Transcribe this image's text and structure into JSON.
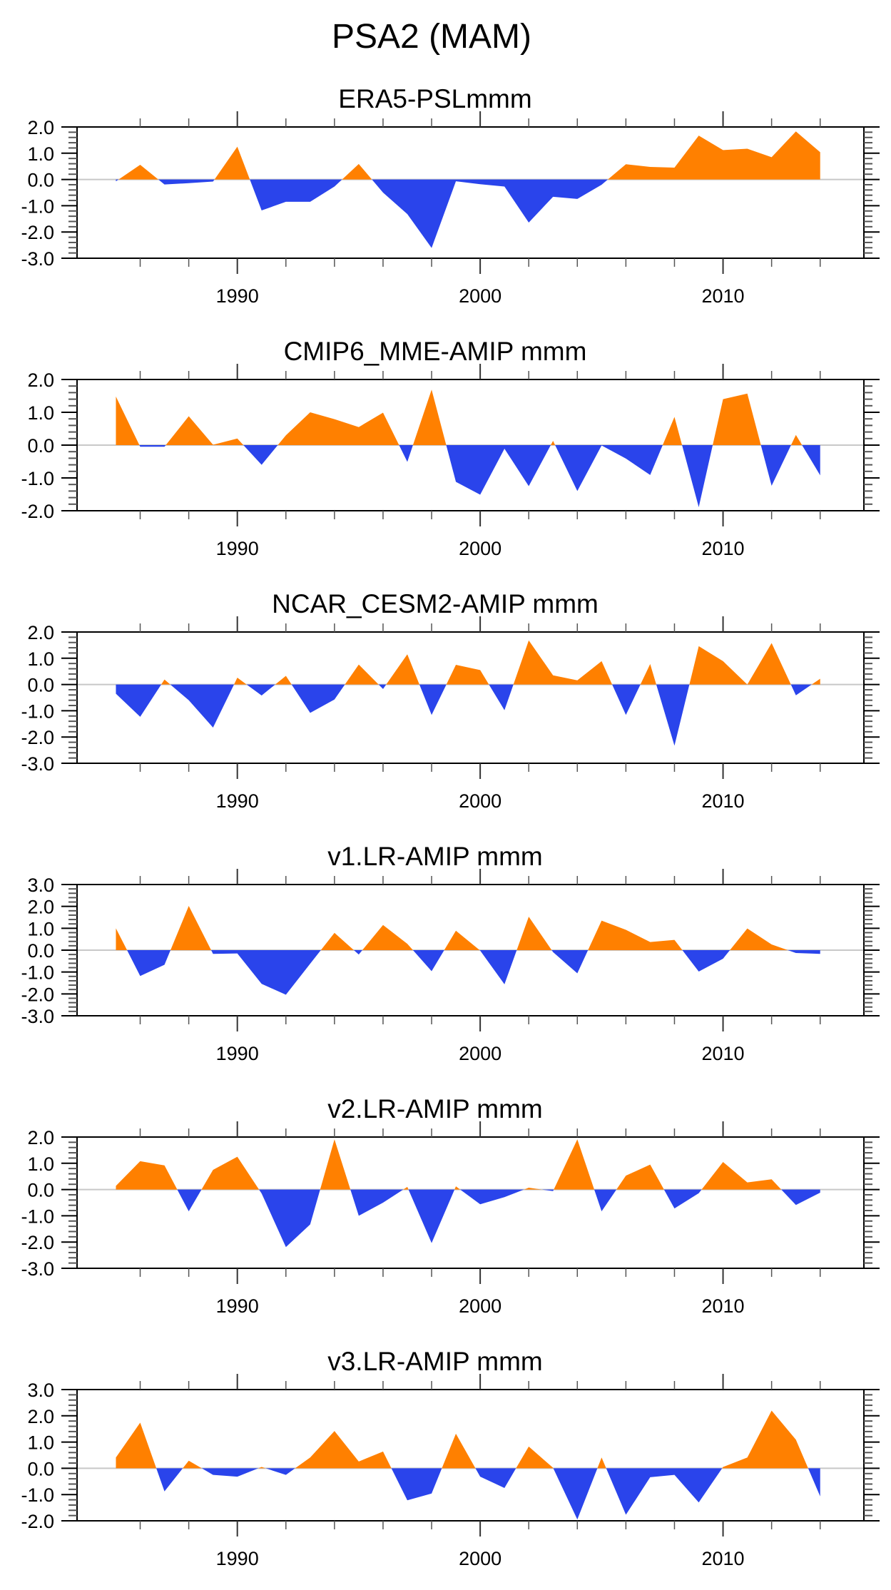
{
  "chart_data": {
    "type": "area",
    "title": "PSA2 (MAM)",
    "colors": {
      "positive": "#FF8000",
      "negative": "#2A44EB",
      "zero_line": "#C8C8C8",
      "axis": "#000000"
    },
    "x": [
      1985,
      1986,
      1987,
      1988,
      1989,
      1990,
      1991,
      1992,
      1993,
      1994,
      1995,
      1996,
      1997,
      1998,
      1999,
      2000,
      2001,
      2002,
      2003,
      2004,
      2005,
      2006,
      2007,
      2008,
      2009,
      2010,
      2011,
      2012,
      2013,
      2014
    ],
    "xlim": [
      1983.4,
      2015.8
    ],
    "x_major_ticks": [
      1990,
      2000,
      2010
    ],
    "x_tick_labels": [
      "1990",
      "2000",
      "2010"
    ],
    "x_minor_ticks": [
      1986,
      1988,
      1992,
      1994,
      1996,
      1998,
      2002,
      2004,
      2006,
      2008,
      2012,
      2014
    ],
    "panels": [
      {
        "title": "ERA5-PSLmmm",
        "ylim": [
          -3.0,
          2.0
        ],
        "y_ticks": [
          2.0,
          1.0,
          0.0,
          -1.0,
          -2.0,
          -3.0
        ],
        "y_tick_labels": [
          "2.0",
          "1.0",
          "0.0",
          "-1.0",
          "-2.0",
          "-3.0"
        ],
        "values": [
          -0.07,
          0.56,
          -0.19,
          -0.14,
          -0.08,
          1.25,
          -1.18,
          -0.85,
          -0.85,
          -0.27,
          0.59,
          -0.5,
          -1.32,
          -2.61,
          -0.07,
          -0.18,
          -0.27,
          -1.64,
          -0.66,
          -0.74,
          -0.2,
          0.58,
          0.48,
          0.45,
          1.67,
          1.12,
          1.17,
          0.85,
          1.83,
          1.04
        ]
      },
      {
        "title": "CMIP6_MME-AMIP  mmm",
        "ylim": [
          -2.0,
          2.0
        ],
        "y_ticks": [
          2.0,
          1.0,
          0.0,
          -1.0,
          -2.0
        ],
        "y_tick_labels": [
          "2.0",
          "1.0",
          "0.0",
          "-1.0",
          "-2.0"
        ],
        "values": [
          1.48,
          -0.05,
          -0.05,
          0.88,
          0.01,
          0.2,
          -0.6,
          0.3,
          1.0,
          0.79,
          0.55,
          0.99,
          -0.51,
          1.69,
          -1.12,
          -1.51,
          -0.11,
          -1.25,
          0.13,
          -1.4,
          -0.01,
          -0.41,
          -0.91,
          0.86,
          -1.89,
          1.4,
          1.57,
          -1.24,
          0.31,
          -0.92
        ]
      },
      {
        "title": "NCAR_CESM2-AMIP  mmm",
        "ylim": [
          -3.0,
          2.0
        ],
        "y_ticks": [
          2.0,
          1.0,
          0.0,
          -1.0,
          -2.0,
          -3.0
        ],
        "y_tick_labels": [
          "2.0",
          "1.0",
          "0.0",
          "-1.0",
          "-2.0",
          "-3.0"
        ],
        "values": [
          -0.35,
          -1.23,
          0.19,
          -0.6,
          -1.64,
          0.26,
          -0.42,
          0.33,
          -1.08,
          -0.57,
          0.76,
          -0.17,
          1.15,
          -1.16,
          0.75,
          0.55,
          -0.98,
          1.68,
          0.35,
          0.16,
          0.89,
          -1.16,
          0.78,
          -2.33,
          1.46,
          0.89,
          0.0,
          1.58,
          -0.41,
          0.22
        ]
      },
      {
        "title": "v1.LR-AMIP  mmm",
        "ylim": [
          -3.0,
          3.0
        ],
        "y_ticks": [
          3.0,
          2.0,
          1.0,
          0.0,
          -1.0,
          -2.0,
          -3.0
        ],
        "y_tick_labels": [
          "3.0",
          "2.0",
          "1.0",
          "0.0",
          "-1.0",
          "-2.0",
          "-3.0"
        ],
        "values": [
          1.0,
          -1.18,
          -0.67,
          2.02,
          -0.17,
          -0.15,
          -1.54,
          -2.04,
          -0.62,
          0.79,
          -0.2,
          1.15,
          0.29,
          -0.96,
          0.89,
          -0.02,
          -1.56,
          1.53,
          -0.09,
          -1.06,
          1.35,
          0.93,
          0.37,
          0.47,
          -0.98,
          -0.39,
          0.99,
          0.26,
          -0.13,
          -0.17
        ]
      },
      {
        "title": "v2.LR-AMIP  mmm",
        "ylim": [
          -3.0,
          2.0
        ],
        "y_ticks": [
          2.0,
          1.0,
          0.0,
          -1.0,
          -2.0,
          -3.0
        ],
        "y_tick_labels": [
          "2.0",
          "1.0",
          "0.0",
          "-1.0",
          "-2.0",
          "-3.0"
        ],
        "values": [
          0.14,
          1.08,
          0.92,
          -0.83,
          0.75,
          1.25,
          -0.15,
          -2.19,
          -1.33,
          1.91,
          -1.0,
          -0.5,
          0.1,
          -2.04,
          0.12,
          -0.56,
          -0.29,
          0.07,
          -0.06,
          1.91,
          -0.83,
          0.53,
          0.95,
          -0.72,
          -0.14,
          1.05,
          0.27,
          0.39,
          -0.59,
          -0.12
        ]
      },
      {
        "title": "v3.LR-AMIP  mmm",
        "ylim": [
          -2.0,
          3.0
        ],
        "y_ticks": [
          3.0,
          2.0,
          1.0,
          0.0,
          -1.0,
          -2.0
        ],
        "y_tick_labels": [
          "3.0",
          "2.0",
          "1.0",
          "0.0",
          "-1.0",
          "-2.0"
        ],
        "values": [
          0.41,
          1.74,
          -0.88,
          0.29,
          -0.25,
          -0.32,
          0.05,
          -0.25,
          0.41,
          1.42,
          0.26,
          0.64,
          -1.22,
          -0.96,
          1.32,
          -0.32,
          -0.75,
          0.83,
          0.02,
          -1.95,
          0.41,
          -1.77,
          -0.34,
          -0.25,
          -1.3,
          0.05,
          0.41,
          2.2,
          1.09,
          -1.07
        ]
      }
    ]
  }
}
